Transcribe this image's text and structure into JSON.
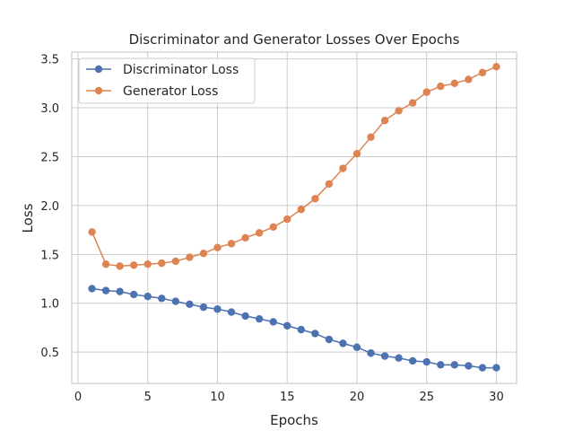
{
  "chart_data": {
    "type": "line",
    "title": "Discriminator and Generator Losses Over Epochs",
    "xlabel": "Epochs",
    "ylabel": "Loss",
    "xlim": [
      -0.45,
      31.45
    ],
    "ylim": [
      0.18,
      3.57
    ],
    "xticks": [
      0,
      5,
      10,
      15,
      20,
      25,
      30
    ],
    "yticks": [
      0.5,
      1.0,
      1.5,
      2.0,
      2.5,
      3.0,
      3.5
    ],
    "xtick_labels": [
      "0",
      "5",
      "10",
      "15",
      "20",
      "25",
      "30"
    ],
    "ytick_labels": [
      "0.5",
      "1.0",
      "1.5",
      "2.0",
      "2.5",
      "3.0",
      "3.5"
    ],
    "grid": true,
    "legend_position": "top-left",
    "x": [
      1,
      2,
      3,
      4,
      5,
      6,
      7,
      8,
      9,
      10,
      11,
      12,
      13,
      14,
      15,
      16,
      17,
      18,
      19,
      20,
      21,
      22,
      23,
      24,
      25,
      26,
      27,
      28,
      29,
      30
    ],
    "series": [
      {
        "name": "Discriminator Loss",
        "color": "#4c72b0",
        "values": [
          1.15,
          1.13,
          1.12,
          1.09,
          1.07,
          1.05,
          1.02,
          0.99,
          0.96,
          0.94,
          0.91,
          0.87,
          0.84,
          0.81,
          0.77,
          0.73,
          0.69,
          0.63,
          0.59,
          0.55,
          0.49,
          0.46,
          0.44,
          0.41,
          0.4,
          0.37,
          0.37,
          0.36,
          0.34,
          0.34
        ]
      },
      {
        "name": "Generator Loss",
        "color": "#dd8452",
        "values": [
          1.73,
          1.4,
          1.38,
          1.39,
          1.4,
          1.41,
          1.43,
          1.47,
          1.51,
          1.57,
          1.61,
          1.67,
          1.72,
          1.78,
          1.86,
          1.96,
          2.07,
          2.22,
          2.38,
          2.53,
          2.7,
          2.87,
          2.97,
          3.05,
          3.16,
          3.22,
          3.25,
          3.29,
          3.36,
          3.42
        ]
      }
    ]
  }
}
